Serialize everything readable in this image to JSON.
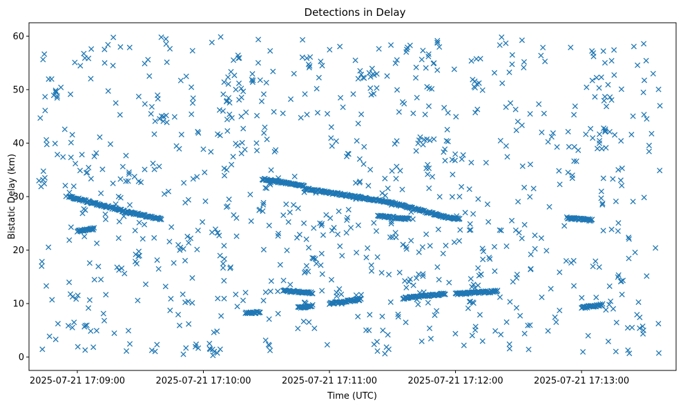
{
  "chart_data": {
    "type": "scatter",
    "title": "Detections in Delay",
    "xlabel": "Time (UTC)",
    "ylabel": "Bistatic Delay (km)",
    "x_ticks": [
      "2025-07-21 17:09:00",
      "2025-07-21 17:10:00",
      "2025-07-21 17:11:00",
      "2025-07-21 17:12:00",
      "2025-07-21 17:13:00"
    ],
    "y_ticks": [
      "0",
      "10",
      "20",
      "30",
      "40",
      "50",
      "60"
    ],
    "xlim": [
      "2025-07-21 17:08:37",
      "2025-07-21 17:13:45"
    ],
    "ylim": [
      -2.5,
      62.5
    ],
    "grid": false,
    "marker": "x",
    "color": "#1f77b4",
    "noise_time_range": [
      "2025-07-21 17:08:42",
      "2025-07-21 17:13:38"
    ],
    "noise_delay_range": [
      0.5,
      60
    ],
    "approx_point_count": 1100,
    "tracks": [
      {
        "t_start": "2025-07-21 17:08:56",
        "t_end": "2025-07-21 17:09:25",
        "delay_start": 30.0,
        "delay_end": 27.0
      },
      {
        "t_start": "2025-07-21 17:09:25",
        "t_end": "2025-07-21 17:09:40",
        "delay_start": 27.0,
        "delay_end": 25.8
      },
      {
        "t_start": "2025-07-21 17:10:28",
        "t_end": "2025-07-21 17:10:48",
        "delay_start": 33.3,
        "delay_end": 32.0
      },
      {
        "t_start": "2025-07-21 17:10:48",
        "t_end": "2025-07-21 17:11:28",
        "delay_start": 31.5,
        "delay_end": 29.0
      },
      {
        "t_start": "2025-07-21 17:11:28",
        "t_end": "2025-07-21 17:11:55",
        "delay_start": 29.0,
        "delay_end": 26.2
      },
      {
        "t_start": "2025-07-21 17:11:55",
        "t_end": "2025-07-21 17:12:02",
        "delay_start": 26.2,
        "delay_end": 25.8
      },
      {
        "t_start": "2025-07-21 17:12:00",
        "t_end": "2025-07-21 17:12:20",
        "delay_start": 11.8,
        "delay_end": 12.3
      },
      {
        "t_start": "2025-07-21 17:10:38",
        "t_end": "2025-07-21 17:10:52",
        "delay_start": 12.4,
        "delay_end": 12.0
      },
      {
        "t_start": "2025-07-21 17:10:45",
        "t_end": "2025-07-21 17:10:52",
        "delay_start": 9.2,
        "delay_end": 9.6
      },
      {
        "t_start": "2025-07-21 17:11:00",
        "t_end": "2025-07-21 17:11:15",
        "delay_start": 10.0,
        "delay_end": 10.8
      },
      {
        "t_start": "2025-07-21 17:11:35",
        "t_end": "2025-07-21 17:11:55",
        "delay_start": 11.0,
        "delay_end": 11.8
      },
      {
        "t_start": "2025-07-21 17:09:00",
        "t_end": "2025-07-21 17:09:08",
        "delay_start": 23.5,
        "delay_end": 24.0
      },
      {
        "t_start": "2025-07-21 17:10:20",
        "t_end": "2025-07-21 17:10:27",
        "delay_start": 8.2,
        "delay_end": 8.4
      },
      {
        "t_start": "2025-07-21 17:11:23",
        "t_end": "2025-07-21 17:11:38",
        "delay_start": 26.4,
        "delay_end": 25.8
      },
      {
        "t_start": "2025-07-21 17:12:53",
        "t_end": "2025-07-21 17:13:05",
        "delay_start": 26.0,
        "delay_end": 25.6
      },
      {
        "t_start": "2025-07-21 17:13:00",
        "t_end": "2025-07-21 17:13:10",
        "delay_start": 9.2,
        "delay_end": 9.8
      }
    ]
  }
}
